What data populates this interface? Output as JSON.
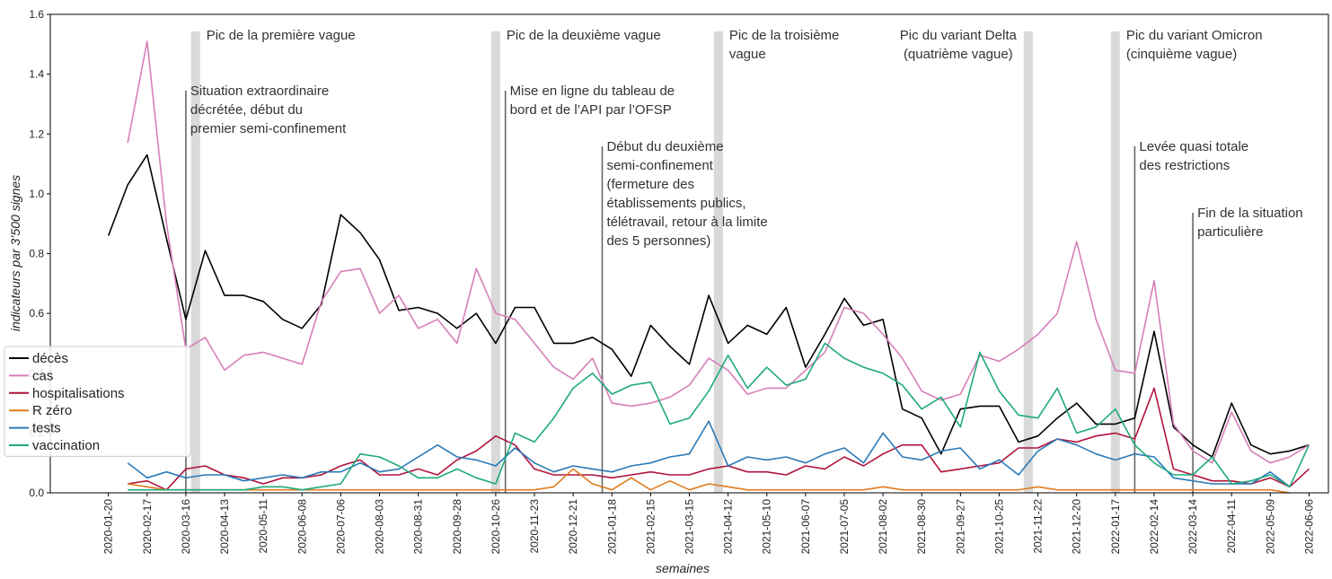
{
  "chart_data": {
    "type": "line",
    "ylabel": "indicateurs par 3’500 signes",
    "xlabel": "semaines",
    "x": [
      "2020-01-20",
      "2020-02-03",
      "2020-02-17",
      "2020-03-02",
      "2020-03-16",
      "2020-03-30",
      "2020-04-13",
      "2020-04-27",
      "2020-05-11",
      "2020-05-25",
      "2020-06-08",
      "2020-06-22",
      "2020-07-06",
      "2020-07-20",
      "2020-08-03",
      "2020-08-17",
      "2020-08-31",
      "2020-09-14",
      "2020-09-28",
      "2020-10-12",
      "2020-10-26",
      "2020-11-09",
      "2020-11-23",
      "2020-12-07",
      "2020-12-21",
      "2021-01-04",
      "2021-01-18",
      "2021-02-01",
      "2021-02-15",
      "2021-03-01",
      "2021-03-15",
      "2021-03-29",
      "2021-04-12",
      "2021-04-26",
      "2021-05-10",
      "2021-05-24",
      "2021-06-07",
      "2021-06-21",
      "2021-07-05",
      "2021-07-19",
      "2021-08-02",
      "2021-08-16",
      "2021-08-30",
      "2021-09-13",
      "2021-09-27",
      "2021-10-11",
      "2021-10-25",
      "2021-11-08",
      "2021-11-22",
      "2021-12-06",
      "2021-12-20",
      "2022-01-03",
      "2022-01-17",
      "2022-01-31",
      "2022-02-14",
      "2022-02-28",
      "2022-03-14",
      "2022-03-28",
      "2022-04-11",
      "2022-04-25",
      "2022-05-09",
      "2022-05-23",
      "2022-06-06"
    ],
    "series": [
      {
        "name": "décès",
        "color": "#000000",
        "values": [
          0.86,
          1.03,
          1.13,
          0.85,
          0.58,
          0.81,
          0.66,
          0.66,
          0.64,
          0.58,
          0.55,
          0.63,
          0.93,
          0.87,
          0.78,
          0.61,
          0.62,
          0.6,
          0.55,
          0.6,
          0.5,
          0.62,
          0.62,
          0.5,
          0.5,
          0.52,
          0.48,
          0.39,
          0.56,
          0.49,
          0.43,
          0.66,
          0.5,
          0.56,
          0.53,
          0.62,
          0.42,
          0.53,
          0.65,
          0.56,
          0.58,
          0.28,
          0.25,
          0.13,
          0.28,
          0.29,
          0.29,
          0.17,
          0.19,
          0.25,
          0.3,
          0.23,
          0.23,
          0.25,
          0.54,
          0.22,
          0.16,
          0.12,
          0.3,
          0.16,
          0.13,
          0.14,
          0.16
        ]
      },
      {
        "name": "cas",
        "color": "#d67fb8",
        "values": [
          null,
          1.17,
          1.51,
          0.9,
          0.48,
          0.52,
          0.41,
          0.46,
          0.47,
          0.45,
          0.43,
          0.64,
          0.74,
          0.75,
          0.6,
          0.66,
          0.55,
          0.58,
          0.5,
          0.75,
          0.6,
          0.58,
          0.5,
          0.42,
          0.38,
          0.45,
          0.3,
          0.29,
          0.3,
          0.32,
          0.36,
          0.45,
          0.41,
          0.33,
          0.35,
          0.35,
          0.41,
          0.47,
          0.62,
          0.6,
          0.53,
          0.45,
          0.34,
          0.31,
          0.33,
          0.46,
          0.44,
          0.48,
          0.53,
          0.6,
          0.84,
          0.58,
          0.41,
          0.4,
          0.71,
          0.23,
          0.14,
          0.1,
          0.27,
          0.14,
          0.1,
          0.12,
          0.16
        ]
      },
      {
        "name": "hospitalisations",
        "color": "#b0133a",
        "values": [
          null,
          0.03,
          0.04,
          0.01,
          0.08,
          0.09,
          0.06,
          0.05,
          0.03,
          0.05,
          0.05,
          0.06,
          0.09,
          0.11,
          0.06,
          0.06,
          0.08,
          0.06,
          0.11,
          0.14,
          0.19,
          0.16,
          0.08,
          0.06,
          0.06,
          0.06,
          0.05,
          0.06,
          0.07,
          0.06,
          0.06,
          0.08,
          0.09,
          0.07,
          0.07,
          0.06,
          0.09,
          0.08,
          0.12,
          0.09,
          0.13,
          0.16,
          0.16,
          0.07,
          0.08,
          0.09,
          0.1,
          0.15,
          0.15,
          0.18,
          0.17,
          0.19,
          0.2,
          0.18,
          0.35,
          0.08,
          0.06,
          0.04,
          0.04,
          0.03,
          0.05,
          0.02,
          0.08
        ]
      },
      {
        "name": "R zéro",
        "color": "#e07b1f",
        "values": [
          null,
          0.03,
          0.02,
          0.01,
          0.01,
          0.01,
          0.01,
          0.01,
          0.01,
          0.01,
          0.01,
          0.01,
          0.01,
          0.01,
          0.01,
          0.01,
          0.01,
          0.01,
          0.01,
          0.01,
          0.01,
          0.01,
          0.01,
          0.02,
          0.08,
          0.03,
          0.01,
          0.05,
          0.01,
          0.04,
          0.01,
          0.03,
          0.02,
          0.01,
          0.01,
          0.01,
          0.01,
          0.01,
          0.01,
          0.01,
          0.02,
          0.01,
          0.01,
          0.01,
          0.01,
          0.01,
          0.01,
          0.01,
          0.02,
          0.01,
          0.01,
          0.01,
          0.01,
          0.01,
          0.01,
          0.01,
          0.01,
          0.01,
          0.01,
          0.01,
          0.01,
          0,
          null
        ]
      },
      {
        "name": "tests",
        "color": "#2a7ab9",
        "values": [
          null,
          0.1,
          0.05,
          0.07,
          0.05,
          0.06,
          0.06,
          0.04,
          0.05,
          0.06,
          0.05,
          0.07,
          0.07,
          0.1,
          0.07,
          0.08,
          0.12,
          0.16,
          0.12,
          0.11,
          0.09,
          0.15,
          0.1,
          0.07,
          0.09,
          0.08,
          0.07,
          0.09,
          0.1,
          0.12,
          0.13,
          0.24,
          0.09,
          0.12,
          0.11,
          0.12,
          0.1,
          0.13,
          0.15,
          0.1,
          0.2,
          0.12,
          0.11,
          0.14,
          0.15,
          0.08,
          0.11,
          0.06,
          0.14,
          0.18,
          0.16,
          0.13,
          0.11,
          0.13,
          0.12,
          0.05,
          0.04,
          0.03,
          0.03,
          0.03,
          0.07,
          0.02,
          null
        ]
      },
      {
        "name": "vaccination",
        "color": "#1faa7a",
        "values": [
          null,
          0.01,
          0.01,
          0.01,
          0.01,
          0.01,
          0.01,
          0.01,
          0.02,
          0.02,
          0.01,
          0.02,
          0.03,
          0.13,
          0.12,
          0.09,
          0.05,
          0.05,
          0.08,
          0.05,
          0.03,
          0.2,
          0.17,
          0.25,
          0.35,
          0.4,
          0.33,
          0.36,
          0.37,
          0.23,
          0.25,
          0.34,
          0.46,
          0.35,
          0.42,
          0.36,
          0.38,
          0.5,
          0.45,
          0.42,
          0.4,
          0.36,
          0.28,
          0.32,
          0.22,
          0.47,
          0.34,
          0.26,
          0.25,
          0.35,
          0.2,
          0.22,
          0.28,
          0.16,
          0.1,
          0.06,
          0.06,
          0.12,
          0.03,
          0.04,
          0.06,
          0.02,
          0.16
        ]
      }
    ],
    "xlim": [
      "2019-12-09",
      "2022-06-20"
    ],
    "xticks": [
      "2020-01-20",
      "2020-02-17",
      "2020-03-16",
      "2020-04-13",
      "2020-05-11",
      "2020-06-08",
      "2020-07-06",
      "2020-08-03",
      "2020-08-31",
      "2020-09-28",
      "2020-10-26",
      "2020-11-23",
      "2020-12-21",
      "2021-01-18",
      "2021-02-15",
      "2021-03-15",
      "2021-04-12",
      "2021-05-10",
      "2021-06-07",
      "2021-07-05",
      "2021-08-02",
      "2021-08-30",
      "2021-09-27",
      "2021-10-25",
      "2021-11-22",
      "2021-12-20",
      "2022-01-17",
      "2022-02-14",
      "2022-03-14",
      "2022-04-11",
      "2022-05-09",
      "2022-06-06"
    ],
    "ylim": [
      0,
      1.6
    ],
    "yticks": [
      {
        "value": 0,
        "label": "0.0"
      },
      {
        "value": 0.2,
        "label": "0.2"
      },
      {
        "value": 0.4,
        "label": "0.4"
      },
      {
        "value": 0.6,
        "label": "0.6"
      },
      {
        "value": 0.8,
        "label": "0.8"
      },
      {
        "value": 1,
        "label": "1.0"
      },
      {
        "value": 1.2,
        "label": "1.2"
      },
      {
        "value": 1.4,
        "label": "1.4"
      },
      {
        "value": 1.6,
        "label": "1.6"
      }
    ],
    "grid": false,
    "legend": "center left",
    "peaks": [
      {
        "x": "2020-03-23",
        "text": [
          "Pic de la première vague"
        ]
      },
      {
        "x": "2020-10-26",
        "text": [
          "Pic de la deuxième vague"
        ]
      },
      {
        "x": "2021-04-05",
        "text": [
          "Pic de la troisième",
          "vague"
        ]
      },
      {
        "x": "2021-11-15",
        "text": [
          "Pic du variant Delta",
          "(quatrième vague)"
        ]
      },
      {
        "x": "2022-01-17",
        "text": [
          "Pic du variant Omicron",
          "(cinquième vague)"
        ]
      }
    ],
    "events": [
      {
        "x": "2020-03-16",
        "text": [
          "Situation extraordinaire",
          "décrétée, début du",
          "premier semi-confinement"
        ]
      },
      {
        "x": "2020-11-02",
        "text": [
          "Mise en ligne du tableau de",
          "bord et de l’API par l’OFSP"
        ]
      },
      {
        "x": "2021-01-11",
        "text": [
          "Début du deuxième",
          "semi-confinement",
          "(fermeture des",
          "établissements publics,",
          "télétravail, retour à la limite",
          "des 5 personnes)"
        ]
      },
      {
        "x": "2022-01-31",
        "text": [
          "Levée quasi totale",
          "des restrictions"
        ]
      },
      {
        "x": "2022-03-14",
        "text": [
          "Fin de la situation",
          "particulière"
        ]
      }
    ]
  }
}
